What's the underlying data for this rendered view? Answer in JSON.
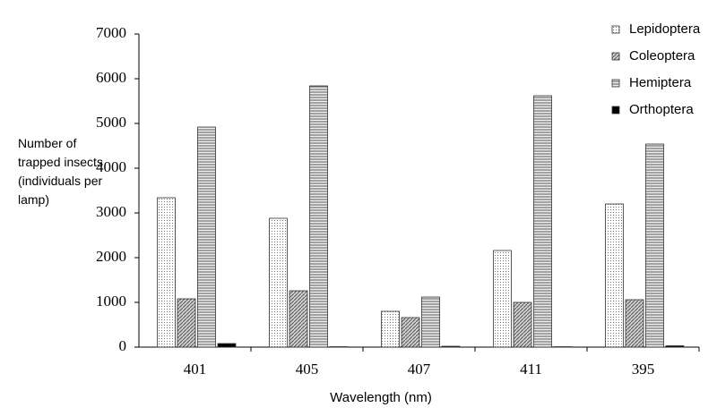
{
  "chart_data": {
    "type": "bar",
    "ylabel": "Number of trapped insects (individuals per lamp)",
    "xlabel": "Wavelength (nm)",
    "categories": [
      "401",
      "405",
      "407",
      "411",
      "395"
    ],
    "series": [
      {
        "name": "Lepidoptera",
        "color": "#ffffff",
        "pattern": "dots",
        "values": [
          3340,
          2880,
          800,
          2160,
          3200
        ]
      },
      {
        "name": "Coleoptera",
        "color": "#bfbfbf",
        "pattern": "diagonal",
        "values": [
          1080,
          1260,
          660,
          1000,
          1060
        ]
      },
      {
        "name": "Hemiptera",
        "color": "#d9d9d9",
        "pattern": "horizontal",
        "values": [
          4920,
          5840,
          1120,
          5620,
          4540
        ]
      },
      {
        "name": "Orthoptera",
        "color": "#000000",
        "pattern": "solid",
        "values": [
          80,
          10,
          20,
          10,
          30
        ]
      }
    ],
    "ylim": [
      0,
      7000
    ],
    "yticks": [
      0,
      1000,
      2000,
      3000,
      4000,
      5000,
      6000,
      7000
    ],
    "grid": false,
    "legend": "top-right"
  }
}
